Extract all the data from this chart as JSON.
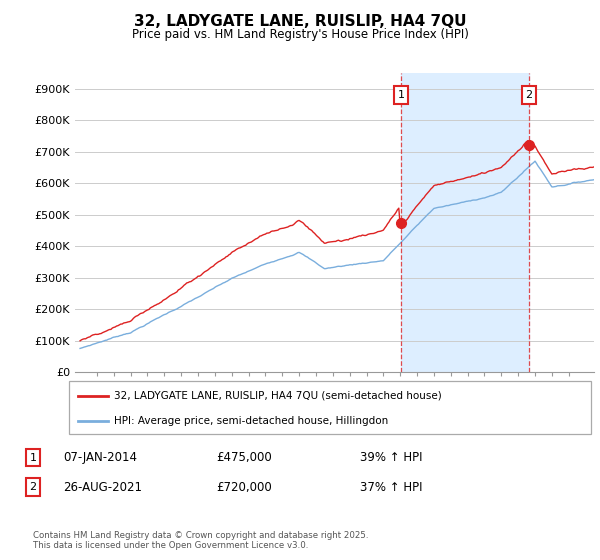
{
  "title": "32, LADYGATE LANE, RUISLIP, HA4 7QU",
  "subtitle": "Price paid vs. HM Land Registry's House Price Index (HPI)",
  "ylim": [
    0,
    950000
  ],
  "yticks": [
    0,
    100000,
    200000,
    300000,
    400000,
    500000,
    600000,
    700000,
    800000,
    900000
  ],
  "ytick_labels": [
    "£0",
    "£100K",
    "£200K",
    "£300K",
    "£400K",
    "£500K",
    "£600K",
    "£700K",
    "£800K",
    "£900K"
  ],
  "line1_color": "#dd2222",
  "line2_color": "#7aaedd",
  "purchase1_year": 2014.04,
  "purchase1_price": 475000,
  "purchase1_pct": "39%",
  "purchase1_date": "07-JAN-2014",
  "purchase2_year": 2021.64,
  "purchase2_price": 720000,
  "purchase2_pct": "37%",
  "purchase2_date": "26-AUG-2021",
  "legend1": "32, LADYGATE LANE, RUISLIP, HA4 7QU (semi-detached house)",
  "legend2": "HPI: Average price, semi-detached house, Hillingdon",
  "footnote": "Contains HM Land Registry data © Crown copyright and database right 2025.\nThis data is licensed under the Open Government Licence v3.0.",
  "background_color": "#ffffff",
  "grid_color": "#cccccc",
  "shade_color": "#ddeeff",
  "x_start_year": 1995,
  "x_end_year": 2025
}
